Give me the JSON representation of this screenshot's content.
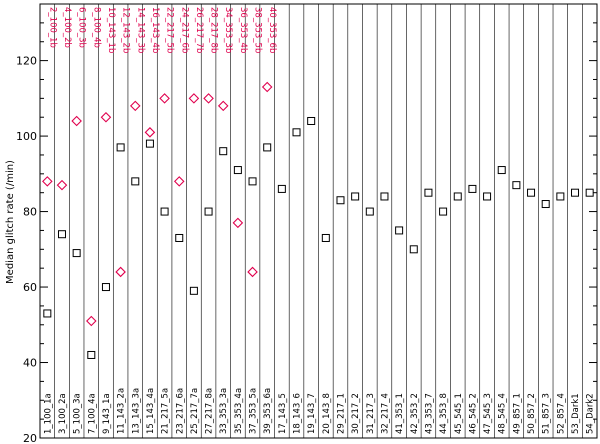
{
  "colors": {
    "black_series": "#000000",
    "red_series": "#e0004d"
  },
  "chart_data": {
    "type": "scatter",
    "ylabel": "Median glitch rate (/min)",
    "ylim": [
      20,
      135
    ],
    "yticks": [
      20,
      40,
      60,
      80,
      100,
      120
    ],
    "grid": "vertical separators between observations",
    "categories": [
      "1_100_1a",
      "3_100_2a",
      "5_100_3a",
      "7_100_4a",
      "9_143_1a",
      "11_143_2a",
      "13_143_3a",
      "15_143_4a",
      "21_217_5a",
      "23_217_6a",
      "25_217_7a",
      "27_217_8a",
      "33_353_3a",
      "35_353_4a",
      "37_353_5a",
      "39_353_6a",
      "17_143_5",
      "18_143_6",
      "19_143_7",
      "20_143_8",
      "29_217_1",
      "30_217_2",
      "31_217_3",
      "32_217_4",
      "41_353_1",
      "42_353_2",
      "43_353_7",
      "44_353_8",
      "45_545_1",
      "46_545_2",
      "47_545_3",
      "48_545_4",
      "49_857_1",
      "50_857_2",
      "51_857_3",
      "52_857_4",
      "53_Dark1",
      "54_Dark2"
    ],
    "series": [
      {
        "marker": "square",
        "values": [
          53,
          74,
          69,
          42,
          60,
          97,
          88,
          98,
          80,
          73,
          59,
          80,
          96,
          91,
          88,
          97,
          86,
          101,
          104,
          73,
          83,
          84,
          80,
          84,
          75,
          70,
          85,
          80,
          84,
          86,
          84,
          91,
          87,
          85,
          82,
          84,
          85,
          85
        ]
      },
      {
        "marker": "diamond",
        "labels": [
          "2_100_1b",
          "4_100_2b",
          "6_100_3b",
          "8_100_4b",
          "10_143_1b",
          "12_143_2b",
          "14_143_3b",
          "16_143_4b",
          "22_217_5b",
          "24_217_6b",
          "26_217_7b",
          "28_217_8b",
          "34_353_3b",
          "36_353_4b",
          "38_353_5b",
          "40_353_6b"
        ],
        "values": [
          88,
          87,
          104,
          51,
          105,
          64,
          108,
          101,
          110,
          88,
          110,
          110,
          108,
          77,
          64,
          113
        ]
      }
    ]
  }
}
